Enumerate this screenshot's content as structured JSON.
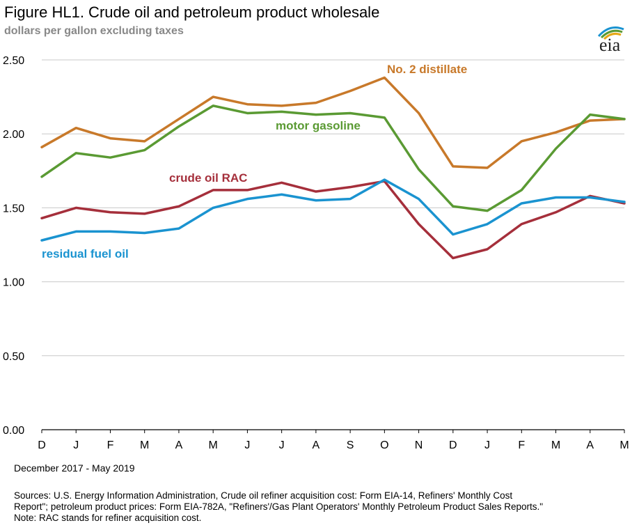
{
  "header": {
    "title": "Figure HL1.  Crude oil and petroleum product wholesale",
    "subtitle": "dollars per gallon excluding taxes",
    "logo_text": "eia"
  },
  "chart_data": {
    "type": "line",
    "title": "Figure HL1.  Crude oil and petroleum product wholesale",
    "ylabel": "dollars per gallon excluding taxes",
    "xlabel": "December 2017 - May 2019",
    "ylim": [
      0,
      2.5
    ],
    "yticks": [
      "0.00",
      "0.50",
      "1.00",
      "1.50",
      "2.00",
      "2.50"
    ],
    "categories": [
      "D",
      "J",
      "F",
      "M",
      "A",
      "M",
      "J",
      "J",
      "A",
      "S",
      "O",
      "N",
      "D",
      "J",
      "F",
      "M",
      "A",
      "M"
    ],
    "grid": true,
    "series": [
      {
        "name": "No. 2 distillate",
        "color": "#C8792A",
        "values": [
          1.91,
          2.04,
          1.97,
          1.95,
          2.1,
          2.25,
          2.2,
          2.19,
          2.21,
          2.29,
          2.38,
          2.14,
          1.78,
          1.77,
          1.95,
          2.01,
          2.09,
          2.1
        ]
      },
      {
        "name": "motor gasoline",
        "color": "#5A9A33",
        "values": [
          1.71,
          1.87,
          1.84,
          1.89,
          2.05,
          2.19,
          2.14,
          2.15,
          2.13,
          2.14,
          2.11,
          1.76,
          1.51,
          1.48,
          1.62,
          1.9,
          2.13,
          2.1
        ]
      },
      {
        "name": "crude oil RAC",
        "color": "#A52F3B",
        "values": [
          1.43,
          1.5,
          1.47,
          1.46,
          1.51,
          1.62,
          1.62,
          1.67,
          1.61,
          1.64,
          1.68,
          1.39,
          1.16,
          1.22,
          1.39,
          1.47,
          1.58,
          1.53
        ]
      },
      {
        "name": "residual fuel oil",
        "color": "#1A93D0",
        "values": [
          1.28,
          1.34,
          1.34,
          1.33,
          1.36,
          1.5,
          1.56,
          1.59,
          1.55,
          1.56,
          1.69,
          1.56,
          1.32,
          1.39,
          1.53,
          1.57,
          1.57,
          1.54
        ]
      }
    ]
  },
  "footer": {
    "date_range": "December 2017 - May 2019",
    "sources_line1": "Sources:  U.S. Energy Information Administration, Crude oil refiner acquisition cost:  Form EIA-14, Refiners' Monthly Cost",
    "sources_line2": "Report\"; petroleum product prices:  Form EIA-782A, \"Refiners'/Gas Plant Operators' Monthly Petroleum Product Sales Reports.\"",
    "note": "Note:  RAC stands for refiner acquisition cost."
  }
}
